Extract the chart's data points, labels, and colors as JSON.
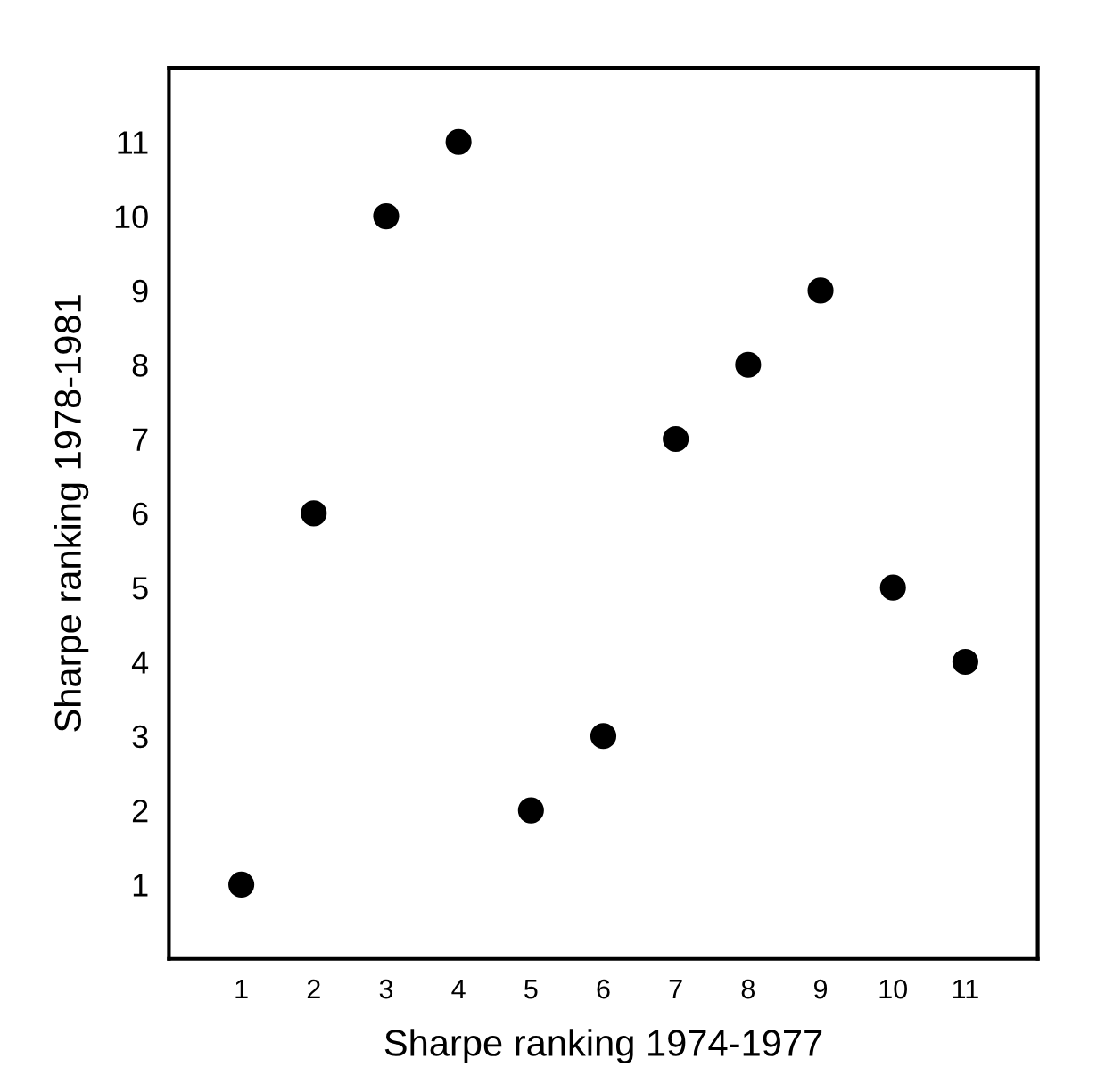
{
  "chart_data": {
    "type": "scatter",
    "xlabel": "Sharpe ranking 1974-1977",
    "ylabel": "Sharpe ranking 1978-1981",
    "x": [
      1,
      2,
      3,
      4,
      5,
      6,
      7,
      8,
      9,
      10,
      11
    ],
    "values": [
      1,
      6,
      10,
      11,
      2,
      3,
      7,
      8,
      9,
      5,
      4
    ],
    "color": "#000000",
    "marker": "circle",
    "xlim": [
      0,
      12
    ],
    "ylim": [
      0,
      12
    ],
    "xticks": [
      1,
      2,
      3,
      4,
      5,
      6,
      7,
      8,
      9,
      10,
      11
    ],
    "yticks": [
      1,
      2,
      3,
      4,
      5,
      6,
      7,
      8,
      9,
      10,
      11
    ],
    "grid": false,
    "legend": false
  }
}
